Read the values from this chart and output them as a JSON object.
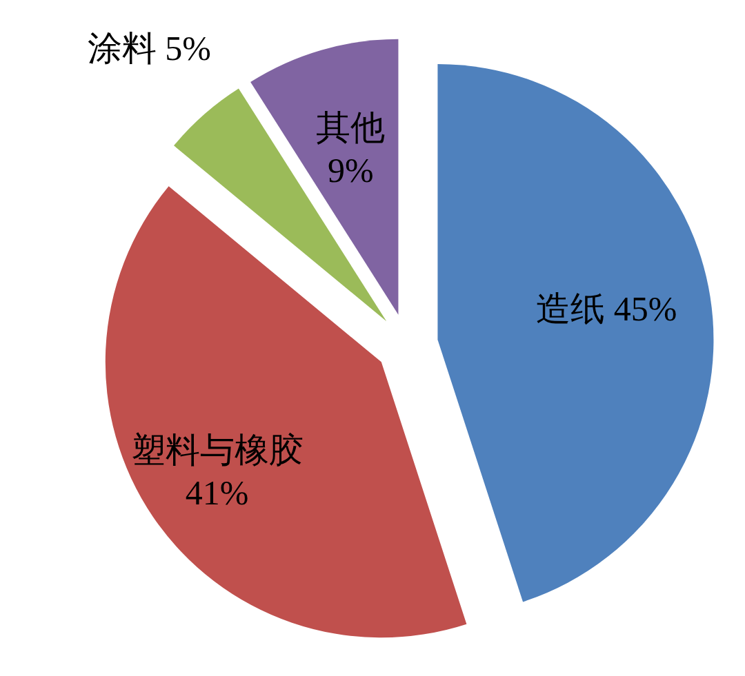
{
  "chart_data": {
    "type": "pie",
    "categories": [
      "造纸",
      "塑料与橡胶",
      "涂料",
      "其他"
    ],
    "values": [
      45,
      41,
      5,
      9
    ],
    "value_labels": [
      "45%",
      "41%",
      "5%",
      "9%"
    ],
    "colors": [
      "#4f81bd",
      "#c0504d",
      "#9bbb59",
      "#8064a2"
    ]
  }
}
